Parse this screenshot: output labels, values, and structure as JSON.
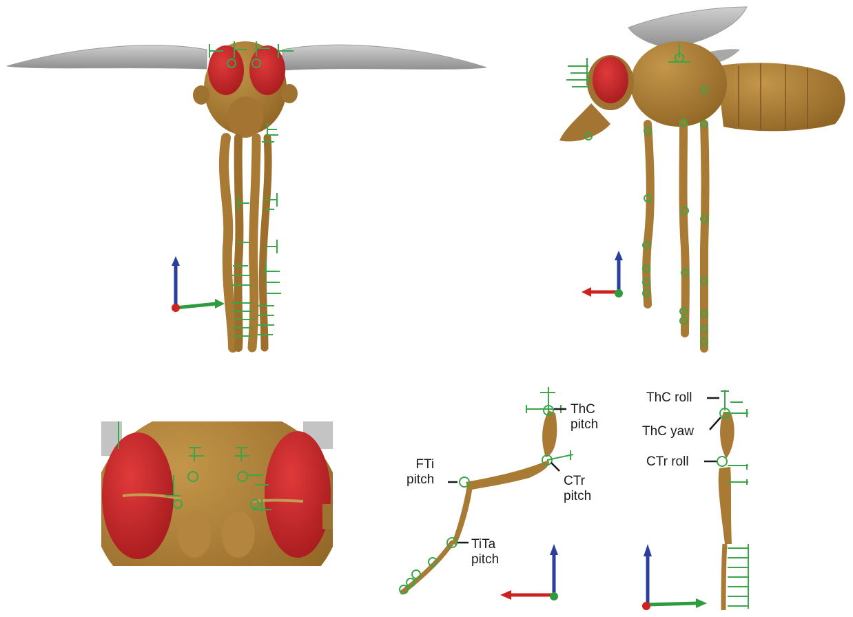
{
  "panels": {
    "front_view": {},
    "side_view": {},
    "head_closeup": {},
    "leg_pitch": {},
    "leg_roll_yaw": {}
  },
  "annotations": {
    "thc_pitch": "ThC\npitch",
    "ctr_pitch": "CTr\npitch",
    "fti_pitch": "FTi\npitch",
    "tita_pitch": "TiTa\npitch",
    "thc_roll": "ThC roll",
    "thc_yaw": "ThC yaw",
    "ctr_roll": "CTr roll"
  },
  "colors": {
    "body": "#a87a34",
    "body_dark": "#8a5f22",
    "eye": "#c8272a",
    "wing": "#b5b5b5",
    "marker": "#3aa64a",
    "axis_x": "#2e9b3c",
    "axis_y": "#cc2222",
    "axis_z": "#2a3e9e"
  },
  "icons": [
    "axis-triad-icon",
    "joint-marker-icon"
  ]
}
